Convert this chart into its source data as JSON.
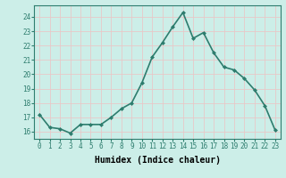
{
  "x": [
    0,
    1,
    2,
    3,
    4,
    5,
    6,
    7,
    8,
    9,
    10,
    11,
    12,
    13,
    14,
    15,
    16,
    17,
    18,
    19,
    20,
    21,
    22,
    23
  ],
  "y": [
    17.2,
    16.3,
    16.2,
    15.9,
    16.5,
    16.5,
    16.5,
    17.0,
    17.6,
    18.0,
    19.4,
    21.2,
    22.2,
    23.3,
    24.3,
    22.5,
    22.9,
    21.5,
    20.5,
    20.3,
    19.7,
    18.9,
    17.8,
    16.1
  ],
  "line_color": "#2e7d6e",
  "marker": "D",
  "marker_size": 2.0,
  "bg_color": "#cceee8",
  "grid_color": "#e8c8c8",
  "xlabel": "Humidex (Indice chaleur)",
  "ylabel": "",
  "title": "",
  "xlim": [
    -0.5,
    23.5
  ],
  "ylim": [
    15.5,
    24.8
  ],
  "yticks": [
    16,
    17,
    18,
    19,
    20,
    21,
    22,
    23,
    24
  ],
  "xticks": [
    0,
    1,
    2,
    3,
    4,
    5,
    6,
    7,
    8,
    9,
    10,
    11,
    12,
    13,
    14,
    15,
    16,
    17,
    18,
    19,
    20,
    21,
    22,
    23
  ],
  "tick_fontsize": 5.5,
  "xlabel_fontsize": 7,
  "line_width": 1.2
}
